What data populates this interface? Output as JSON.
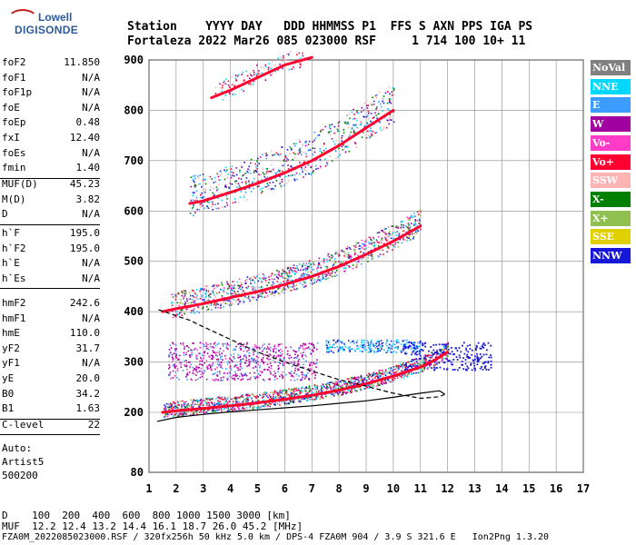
{
  "logo": {
    "line1": "Lowell",
    "line2": "DIGISONDE"
  },
  "header": {
    "row1": "Station    YYYY DAY   DDD HHMMSS P1  FFS S AXN PPS IGA PS",
    "row2": "Fortaleza 2022 Mar26 085 023000 RSF     1 714 100 10+ 11"
  },
  "params": {
    "g1": [
      {
        "k": "foF2",
        "v": "11.850"
      },
      {
        "k": "foF1",
        "v": "N/A"
      },
      {
        "k": "foF1p",
        "v": "N/A"
      },
      {
        "k": "foE",
        "v": "N/A"
      },
      {
        "k": "foEp",
        "v": "0.48"
      },
      {
        "k": "fxI",
        "v": "12.40"
      },
      {
        "k": "foEs",
        "v": "N/A"
      },
      {
        "k": "fmin",
        "v": "1.40"
      }
    ],
    "g2": [
      {
        "k": "MUF(D)",
        "v": "45.23"
      },
      {
        "k": "M(D)",
        "v": "3.82"
      },
      {
        "k": "D",
        "v": "N/A"
      }
    ],
    "g3": [
      {
        "k": "h`F",
        "v": "195.0"
      },
      {
        "k": "h`F2",
        "v": "195.0"
      },
      {
        "k": "h`E",
        "v": "N/A"
      },
      {
        "k": "h`Es",
        "v": "N/A"
      }
    ],
    "g4": [
      {
        "k": "hmF2",
        "v": "242.6"
      },
      {
        "k": "hmF1",
        "v": "N/A"
      },
      {
        "k": "hmE",
        "v": "110.0"
      },
      {
        "k": "yF2",
        "v": "31.7"
      },
      {
        "k": "yF1",
        "v": "N/A"
      },
      {
        "k": "yE",
        "v": "20.0"
      },
      {
        "k": "B0",
        "v": "34.2"
      },
      {
        "k": "B1",
        "v": "1.63"
      }
    ],
    "g5": [
      {
        "k": "C-level",
        "v": "22"
      }
    ]
  },
  "auto": {
    "line1": "Auto:",
    "line2": "Artist5",
    "line3": "500200"
  },
  "legend": [
    {
      "label": "NoVal",
      "color": "#808080"
    },
    {
      "label": "NNE",
      "color": "#00d8ff"
    },
    {
      "label": "E",
      "color": "#3c9cff"
    },
    {
      "label": "W",
      "color": "#a000a0"
    },
    {
      "label": "Vo-",
      "color": "#ff3cc8"
    },
    {
      "label": "Vo+",
      "color": "#ff0030"
    },
    {
      "label": "SSW",
      "color": "#ffb4b4"
    },
    {
      "label": "X-",
      "color": "#008000"
    },
    {
      "label": "X+",
      "color": "#90c050"
    },
    {
      "label": "SSE",
      "color": "#e0d000"
    },
    {
      "label": "NNW",
      "color": "#1818d8"
    }
  ],
  "footer": {
    "line1": "D    100  200  400  600  800 1000 1500 3000 [km]",
    "line2": "MUF  12.2 12.4 13.2 14.4 16.1 18.7 26.0 45.2 [MHz]",
    "line3": "FZA0M_2022085023000.RSF / 320fx256h 50 kHz 5.0 km / DPS-4 FZA0M 904 / 3.9 S 321.6 E   Ion2Png 1.3.20"
  },
  "chart_data": {
    "type": "scatter",
    "xlim": [
      1,
      17
    ],
    "ylim": [
      80,
      900
    ],
    "xticks": [
      1,
      2,
      3,
      4,
      5,
      6,
      7,
      8,
      9,
      10,
      11,
      12,
      13,
      14,
      15,
      16,
      17
    ],
    "yticks": [
      80,
      200,
      300,
      400,
      500,
      600,
      700,
      800,
      900
    ],
    "grid": true,
    "legend_position": "right",
    "traces": [
      {
        "name": "O-trace F",
        "color": "#ff0030",
        "x": [
          1.5,
          2,
          3,
          4,
          5,
          6,
          7,
          8,
          9,
          10,
          11,
          11.5,
          12
        ],
        "y": [
          200,
          203,
          208,
          213,
          219,
          226,
          234,
          244,
          257,
          272,
          290,
          303,
          320
        ]
      },
      {
        "name": "O-trace 2F",
        "color": "#ff0030",
        "x": [
          1.5,
          2,
          3,
          4,
          5,
          6,
          7,
          8,
          9,
          10,
          11
        ],
        "y": [
          400,
          406,
          416,
          428,
          440,
          454,
          470,
          490,
          514,
          540,
          570
        ]
      },
      {
        "name": "O-trace 3F",
        "color": "#ff0030",
        "x": [
          2.5,
          3,
          4,
          5,
          6,
          7,
          8,
          9,
          10
        ],
        "y": [
          615,
          620,
          637,
          655,
          676,
          700,
          730,
          765,
          800
        ]
      },
      {
        "name": "O-trace 4F",
        "color": "#ff0030",
        "x": [
          3.3,
          4,
          5,
          6,
          7
        ],
        "y": [
          825,
          840,
          865,
          890,
          905
        ]
      }
    ],
    "profile": {
      "x": [
        1.3,
        2,
        3,
        4,
        5,
        6,
        7,
        8,
        9,
        10,
        11,
        11.7,
        11.9,
        11.7,
        11,
        10,
        9,
        8,
        7,
        6,
        5,
        4,
        3,
        2.5,
        2,
        1.3
      ],
      "y": [
        182,
        190,
        196,
        201,
        205,
        209,
        213,
        218,
        223,
        230,
        238,
        243,
        236,
        231,
        228,
        238,
        252,
        265,
        282,
        300,
        320,
        345,
        370,
        383,
        392,
        405
      ]
    }
  }
}
